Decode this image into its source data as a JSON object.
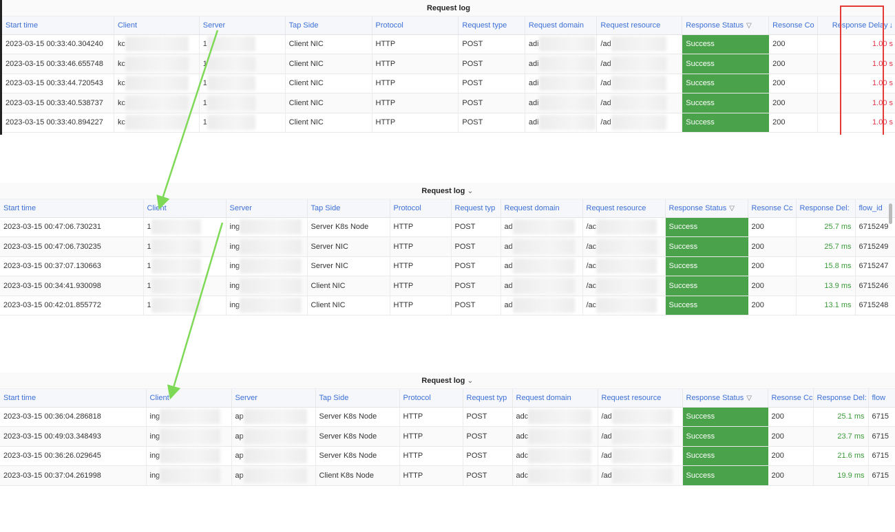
{
  "colors": {
    "header_text": "#3d6fd6",
    "success_bg": "#4aa24a",
    "delay_red": "#e0334a",
    "delay_green": "#3a9b3a",
    "annotation_arrow": "#7ed957",
    "highlight_box": "#e53935"
  },
  "panel1": {
    "title": "Request log",
    "columns": [
      "Start time",
      "Client",
      "Server",
      "Tap Side",
      "Protocol",
      "Request type",
      "Request domain",
      "Request resource",
      "Response Status",
      "Resonse Co",
      "Response Delay"
    ],
    "rows": [
      {
        "start_time": "2023-03-15 00:33:40.304240",
        "client": "kc",
        "server": "1",
        "tap_side": "Client NIC",
        "protocol": "HTTP",
        "request_type": "POST",
        "request_domain": "adi",
        "request_resource": "/ad",
        "response_status": "Success",
        "response_code": "200",
        "response_delay": "1.00 s"
      },
      {
        "start_time": "2023-03-15 00:33:46.655748",
        "client": "kc",
        "server": "1",
        "tap_side": "Client NIC",
        "protocol": "HTTP",
        "request_type": "POST",
        "request_domain": "adi",
        "request_resource": "/ad",
        "response_status": "Success",
        "response_code": "200",
        "response_delay": "1.00 s"
      },
      {
        "start_time": "2023-03-15 00:33:44.720543",
        "client": "kc",
        "server": "1",
        "tap_side": "Client NIC",
        "protocol": "HTTP",
        "request_type": "POST",
        "request_domain": "adi",
        "request_resource": "/ad",
        "response_status": "Success",
        "response_code": "200",
        "response_delay": "1.00 s"
      },
      {
        "start_time": "2023-03-15 00:33:40.538737",
        "client": "kc",
        "server": "1",
        "tap_side": "Client NIC",
        "protocol": "HTTP",
        "request_type": "POST",
        "request_domain": "adi",
        "request_resource": "/ad",
        "response_status": "Success",
        "response_code": "200",
        "response_delay": "1.00 s"
      },
      {
        "start_time": "2023-03-15 00:33:40.894227",
        "client": "kc",
        "server": "1",
        "tap_side": "Client NIC",
        "protocol": "HTTP",
        "request_type": "POST",
        "request_domain": "adi",
        "request_resource": "/ad",
        "response_status": "Success",
        "response_code": "200",
        "response_delay": "1.00 s"
      }
    ]
  },
  "panel2": {
    "title": "Request log",
    "columns": [
      "Start time",
      "Client",
      "Server",
      "Tap Side",
      "Protocol",
      "Request typ",
      "Request domain",
      "Request resource",
      "Response Status",
      "Resonse Cc",
      "Response Del:",
      "flow_id"
    ],
    "rows": [
      {
        "start_time": "2023-03-15 00:47:06.730231",
        "client": "1",
        "server": "ing",
        "tap_side": "Server K8s Node",
        "protocol": "HTTP",
        "request_type": "POST",
        "request_domain": "ad",
        "request_resource": "/ac",
        "response_status": "Success",
        "response_code": "200",
        "response_delay": "25.7 ms",
        "flow_id": "6715249"
      },
      {
        "start_time": "2023-03-15 00:47:06.730235",
        "client": "1",
        "server": "ing",
        "tap_side": "Server NIC",
        "protocol": "HTTP",
        "request_type": "POST",
        "request_domain": "ad",
        "request_resource": "/ac",
        "response_status": "Success",
        "response_code": "200",
        "response_delay": "25.7 ms",
        "flow_id": "6715249"
      },
      {
        "start_time": "2023-03-15 00:37:07.130663",
        "client": "1",
        "server": "ing",
        "tap_side": "Server NIC",
        "protocol": "HTTP",
        "request_type": "POST",
        "request_domain": "ad",
        "request_resource": "/ac",
        "response_status": "Success",
        "response_code": "200",
        "response_delay": "15.8 ms",
        "flow_id": "6715247"
      },
      {
        "start_time": "2023-03-15 00:34:41.930098",
        "client": "1",
        "server": "ing",
        "tap_side": "Client NIC",
        "protocol": "HTTP",
        "request_type": "POST",
        "request_domain": "ad",
        "request_resource": "/ac",
        "response_status": "Success",
        "response_code": "200",
        "response_delay": "13.9 ms",
        "flow_id": "6715246"
      },
      {
        "start_time": "2023-03-15 00:42:01.855772",
        "client": "1",
        "server": "ing",
        "tap_side": "Client NIC",
        "protocol": "HTTP",
        "request_type": "POST",
        "request_domain": "ad",
        "request_resource": "/ac",
        "response_status": "Success",
        "response_code": "200",
        "response_delay": "13.1 ms",
        "flow_id": "6715248"
      }
    ]
  },
  "panel3": {
    "title": "Request log",
    "columns": [
      "Start time",
      "Client",
      "Server",
      "Tap Side",
      "Protocol",
      "Request typ",
      "Request domain",
      "Request resource",
      "Response Status",
      "Resonse Cc",
      "Response Del:",
      "flow"
    ],
    "rows": [
      {
        "start_time": "2023-03-15 00:36:04.286818",
        "client": "ing",
        "server": "ap",
        "tap_side": "Server K8s Node",
        "protocol": "HTTP",
        "request_type": "POST",
        "request_domain": "adc",
        "request_resource": "/ad",
        "response_status": "Success",
        "response_code": "200",
        "response_delay": "25.1 ms",
        "flow_id": "6715"
      },
      {
        "start_time": "2023-03-15 00:49:03.348493",
        "client": "ing",
        "server": "ap",
        "tap_side": "Server K8s Node",
        "protocol": "HTTP",
        "request_type": "POST",
        "request_domain": "adc",
        "request_resource": "/ad",
        "response_status": "Success",
        "response_code": "200",
        "response_delay": "23.7 ms",
        "flow_id": "6715"
      },
      {
        "start_time": "2023-03-15 00:36:26.029645",
        "client": "ing",
        "server": "ap",
        "tap_side": "Server K8s Node",
        "protocol": "HTTP",
        "request_type": "POST",
        "request_domain": "adc",
        "request_resource": "/ad",
        "response_status": "Success",
        "response_code": "200",
        "response_delay": "21.6 ms",
        "flow_id": "6715"
      },
      {
        "start_time": "2023-03-15 00:37:04.261998",
        "client": "ing",
        "server": "ap",
        "tap_side": "Client K8s Node",
        "protocol": "HTTP",
        "request_type": "POST",
        "request_domain": "adc",
        "request_resource": "/ad",
        "response_status": "Success",
        "response_code": "200",
        "response_delay": "19.9 ms",
        "flow_id": "6715"
      }
    ]
  }
}
